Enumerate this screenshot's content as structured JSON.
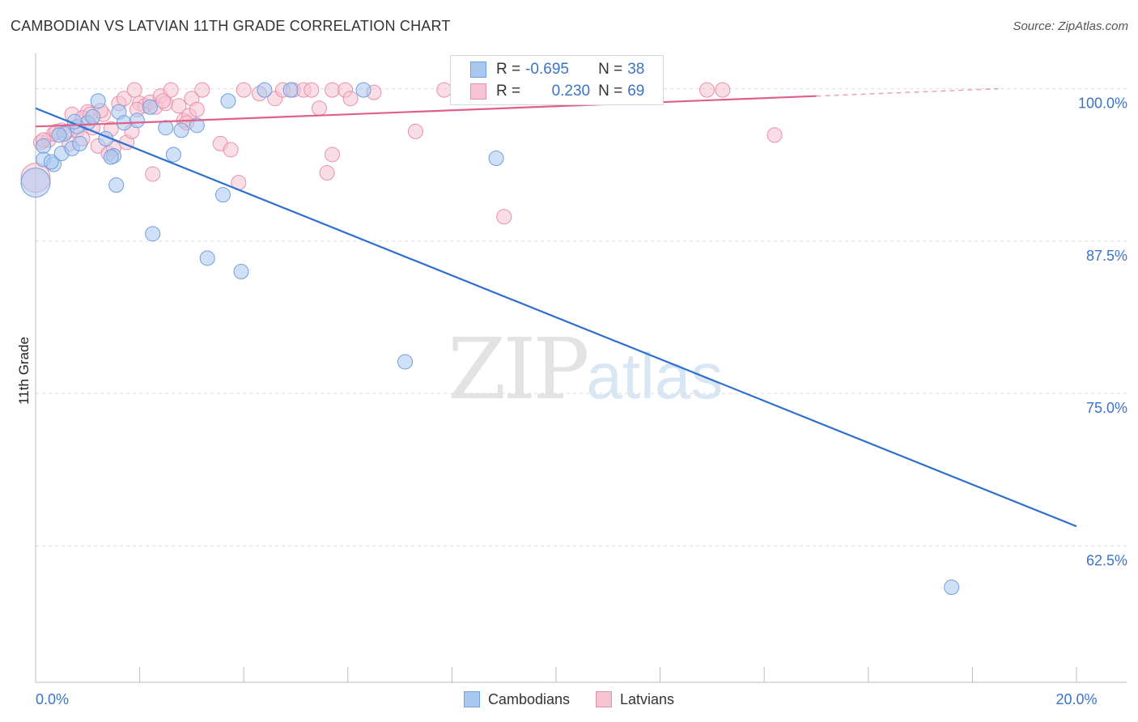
{
  "header": {
    "title": "CAMBODIAN VS LATVIAN 11TH GRADE CORRELATION CHART",
    "source": "Source: ZipAtlas.com"
  },
  "watermark": {
    "zip": "ZIP",
    "atlas": "atlas"
  },
  "legend": {
    "rows": [
      {
        "r_label": "R =",
        "r_value": "-0.695",
        "n_label": "N =",
        "n_value": "38"
      },
      {
        "r_label": "R =",
        "r_value": "0.230",
        "n_label": "N =",
        "n_value": "69"
      }
    ],
    "bottom": [
      "Cambodians",
      "Latvians"
    ]
  },
  "colors": {
    "cambodian_fill": "#a9c8f0",
    "cambodian_stroke": "#6f9fdc",
    "cambodian_line": "#2f6fd0",
    "latvian_fill": "#f6c3d2",
    "latvian_stroke": "#e890ab",
    "latvian_line": "#e0608a",
    "axis_text": "#3b73c9"
  },
  "chart_data": {
    "type": "scatter",
    "title": "CAMBODIAN VS LATVIAN 11TH GRADE CORRELATION CHART",
    "xlabel": "",
    "ylabel": "11th Grade",
    "xlim": [
      0,
      20
    ],
    "ylim": [
      51.3,
      102.5
    ],
    "x_ticks": [
      0,
      2,
      4,
      6,
      8,
      10,
      12,
      14,
      16,
      18,
      20
    ],
    "x_tick_labels": {
      "0": "0.0%",
      "20": "20.0%"
    },
    "y_ticks": [
      100.0,
      87.5,
      75.0,
      62.5
    ],
    "y_tick_labels": [
      "100.0%",
      "87.5%",
      "75.0%",
      "62.5%"
    ],
    "grid": true,
    "legend_position": "top-center",
    "series": [
      {
        "name": "Cambodians",
        "points": [
          [
            0.0,
            92.3
          ],
          [
            0.15,
            95.3
          ],
          [
            0.15,
            94.2
          ],
          [
            0.35,
            93.8
          ],
          [
            0.3,
            94.0
          ],
          [
            0.5,
            94.7
          ],
          [
            0.55,
            96.3
          ],
          [
            0.7,
            95.1
          ],
          [
            0.8,
            96.9
          ],
          [
            1.0,
            97.2
          ],
          [
            1.1,
            97.7
          ],
          [
            1.2,
            99.0
          ],
          [
            1.35,
            95.9
          ],
          [
            1.5,
            94.5
          ],
          [
            1.6,
            98.1
          ],
          [
            1.7,
            97.2
          ],
          [
            1.95,
            97.4
          ],
          [
            2.2,
            98.5
          ],
          [
            2.5,
            96.8
          ],
          [
            2.8,
            96.6
          ],
          [
            3.1,
            97.0
          ],
          [
            3.7,
            99.0
          ],
          [
            4.4,
            99.9
          ],
          [
            4.9,
            99.9
          ],
          [
            6.3,
            99.9
          ],
          [
            1.55,
            92.1
          ],
          [
            2.25,
            88.1
          ],
          [
            2.65,
            94.6
          ],
          [
            3.6,
            91.3
          ],
          [
            3.3,
            86.1
          ],
          [
            3.95,
            85.0
          ],
          [
            7.1,
            77.6
          ],
          [
            8.85,
            94.3
          ],
          [
            17.6,
            59.1
          ],
          [
            0.85,
            95.5
          ],
          [
            0.45,
            96.2
          ],
          [
            1.45,
            94.4
          ],
          [
            0.75,
            97.3
          ]
        ],
        "trend": {
          "x": [
            0,
            20
          ],
          "y": [
            98.4,
            64.1
          ]
        }
      },
      {
        "name": "Latvians",
        "points": [
          [
            0.0,
            92.7
          ],
          [
            0.1,
            95.6
          ],
          [
            0.25,
            95.8
          ],
          [
            0.35,
            96.3
          ],
          [
            0.5,
            96.6
          ],
          [
            0.65,
            95.5
          ],
          [
            0.7,
            97.9
          ],
          [
            0.8,
            96.6
          ],
          [
            0.9,
            95.9
          ],
          [
            1.0,
            98.1
          ],
          [
            1.1,
            96.8
          ],
          [
            1.2,
            95.3
          ],
          [
            1.3,
            97.9
          ],
          [
            1.4,
            94.7
          ],
          [
            1.5,
            95.1
          ],
          [
            1.6,
            98.8
          ],
          [
            1.7,
            99.2
          ],
          [
            1.75,
            95.6
          ],
          [
            1.85,
            96.5
          ],
          [
            1.9,
            99.9
          ],
          [
            2.0,
            98.8
          ],
          [
            2.1,
            98.6
          ],
          [
            2.2,
            98.9
          ],
          [
            2.3,
            98.5
          ],
          [
            2.4,
            99.4
          ],
          [
            2.5,
            98.8
          ],
          [
            2.6,
            99.9
          ],
          [
            2.75,
            98.6
          ],
          [
            2.85,
            97.4
          ],
          [
            2.95,
            97.8
          ],
          [
            3.0,
            99.2
          ],
          [
            3.1,
            98.3
          ],
          [
            3.2,
            99.9
          ],
          [
            3.55,
            95.5
          ],
          [
            3.75,
            95.0
          ],
          [
            3.9,
            92.3
          ],
          [
            4.0,
            99.9
          ],
          [
            4.3,
            99.6
          ],
          [
            4.6,
            99.2
          ],
          [
            4.75,
            99.9
          ],
          [
            4.95,
            99.9
          ],
          [
            5.15,
            99.9
          ],
          [
            5.3,
            99.9
          ],
          [
            5.45,
            98.4
          ],
          [
            5.7,
            99.9
          ],
          [
            5.6,
            93.1
          ],
          [
            5.7,
            94.6
          ],
          [
            5.95,
            99.9
          ],
          [
            6.05,
            99.2
          ],
          [
            6.5,
            99.7
          ],
          [
            7.3,
            96.5
          ],
          [
            7.85,
            99.9
          ],
          [
            8.15,
            99.9
          ],
          [
            9.0,
            89.5
          ],
          [
            11.1,
            99.9
          ],
          [
            12.9,
            99.9
          ],
          [
            13.2,
            99.9
          ],
          [
            14.2,
            96.2
          ],
          [
            0.9,
            97.6
          ],
          [
            1.25,
            98.2
          ],
          [
            1.45,
            96.7
          ],
          [
            2.25,
            93.0
          ],
          [
            2.45,
            99.0
          ],
          [
            2.9,
            97.2
          ],
          [
            0.6,
            96.5
          ],
          [
            0.15,
            95.8
          ],
          [
            0.4,
            96.5
          ],
          [
            1.05,
            97.9
          ],
          [
            1.95,
            98.3
          ]
        ],
        "trend": {
          "x": [
            0,
            15.0
          ],
          "y": [
            96.9,
            99.4
          ]
        },
        "trend_dashed": {
          "x": [
            15.0,
            18.5
          ],
          "y": [
            99.4,
            100.0
          ]
        }
      }
    ]
  }
}
